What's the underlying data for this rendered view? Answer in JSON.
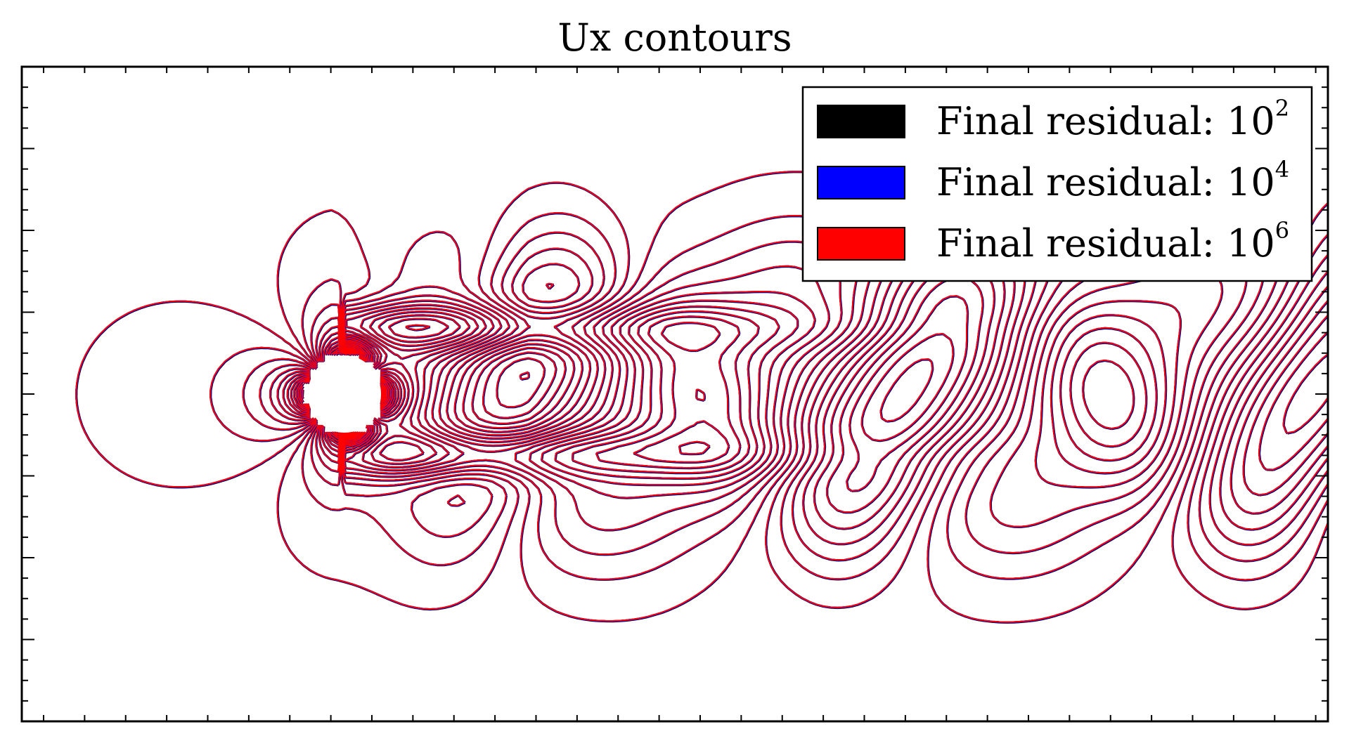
{
  "chart_data": {
    "type": "contour",
    "title": "Ux contours",
    "xlabel": "",
    "ylabel": "",
    "grid": false,
    "legend_position": "top-right",
    "legend": [
      {
        "label": "Final residual: ",
        "base": "10",
        "exponent": "2",
        "color": "#000000"
      },
      {
        "label": "Final residual: ",
        "base": "10",
        "exponent": "4",
        "color": "#0000ff"
      },
      {
        "label": "Final residual: ",
        "base": "10",
        "exponent": "6",
        "color": "#ff0000"
      }
    ],
    "series_colors": [
      "#000000",
      "#0000ff",
      "#ff0000"
    ],
    "obstacle": "cylinder"
  }
}
